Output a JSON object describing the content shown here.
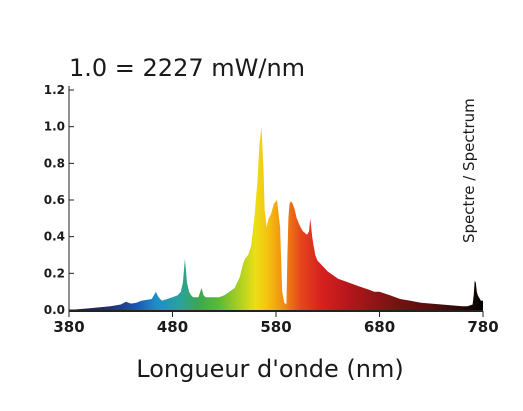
{
  "chart_data": {
    "type": "area",
    "title": "1.0 = 2227 mW/nm",
    "xlabel": "Longueur d'onde (nm)",
    "ylabel": "",
    "side_label": "Spectre / Spectrum",
    "xlim": [
      380,
      780
    ],
    "ylim": [
      0,
      1.2
    ],
    "x_ticks": [
      380,
      480,
      580,
      680,
      780
    ],
    "y_ticks": [
      0.0,
      0.2,
      0.4,
      0.6,
      0.8,
      1.0,
      1.2
    ],
    "y_tick_labels": [
      "0.0",
      "0.2",
      "0.4",
      "0.6",
      "0.8",
      "1.0",
      "1.2"
    ],
    "grid": false,
    "series": [
      {
        "x": [
          380,
          400,
          420,
          430,
          435,
          440,
          445,
          450,
          455,
          460,
          462,
          464,
          466,
          468,
          470,
          472,
          475,
          480,
          485,
          488,
          490,
          492,
          494,
          496,
          498,
          500,
          505,
          508,
          510,
          512,
          515,
          520,
          525,
          530,
          535,
          540,
          545,
          548,
          550,
          553,
          556,
          559,
          562,
          564,
          566,
          568,
          569,
          570,
          571,
          572,
          573,
          575,
          578,
          581,
          584,
          586,
          588,
          590,
          591,
          592,
          593,
          594,
          595,
          596,
          598,
          600,
          603,
          606,
          608,
          610,
          612,
          613,
          614,
          615,
          616,
          617,
          618,
          620,
          625,
          630,
          640,
          650,
          660,
          670,
          675,
          680,
          690,
          700,
          710,
          720,
          730,
          740,
          750,
          760,
          765,
          770,
          771,
          772,
          773,
          774,
          775,
          776,
          777,
          778,
          779,
          780
        ],
        "y": [
          0.0,
          0.01,
          0.02,
          0.03,
          0.045,
          0.035,
          0.04,
          0.05,
          0.055,
          0.06,
          0.08,
          0.1,
          0.075,
          0.06,
          0.05,
          0.055,
          0.06,
          0.07,
          0.08,
          0.1,
          0.15,
          0.28,
          0.15,
          0.1,
          0.08,
          0.07,
          0.07,
          0.12,
          0.08,
          0.07,
          0.07,
          0.07,
          0.07,
          0.08,
          0.1,
          0.12,
          0.18,
          0.25,
          0.28,
          0.3,
          0.35,
          0.5,
          0.7,
          0.9,
          1.0,
          0.75,
          0.55,
          0.5,
          0.45,
          0.48,
          0.5,
          0.52,
          0.58,
          0.6,
          0.45,
          0.1,
          0.04,
          0.03,
          0.3,
          0.5,
          0.58,
          0.59,
          0.59,
          0.58,
          0.55,
          0.5,
          0.46,
          0.43,
          0.42,
          0.41,
          0.43,
          0.5,
          0.45,
          0.4,
          0.36,
          0.33,
          0.3,
          0.27,
          0.24,
          0.21,
          0.17,
          0.15,
          0.13,
          0.11,
          0.1,
          0.1,
          0.08,
          0.06,
          0.05,
          0.04,
          0.035,
          0.03,
          0.025,
          0.02,
          0.02,
          0.03,
          0.08,
          0.16,
          0.15,
          0.1,
          0.08,
          0.07,
          0.06,
          0.05,
          0.05,
          0.05
        ]
      }
    ]
  }
}
